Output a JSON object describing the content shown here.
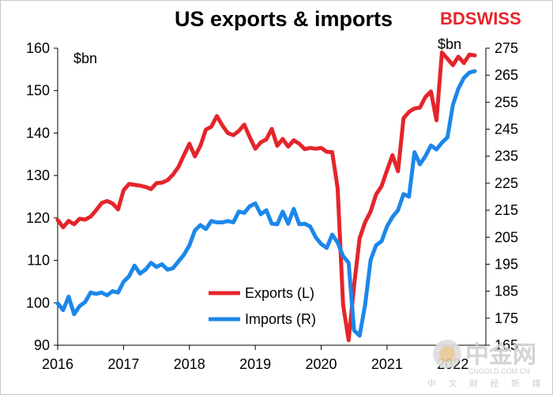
{
  "brand": {
    "name": "BDSWISS",
    "prefix": "BD",
    "suffix": "SWISS",
    "color": "#e4252b"
  },
  "watermark": {
    "big_text": "中金网",
    "small_text": "CNGOLD.COM.CN",
    "cn_text": "中 文 财 经 新 媒 体"
  },
  "colors": {
    "exports": "#e4252b",
    "imports": "#1c87ea",
    "axis": "#000000",
    "tick": "#000000"
  },
  "chart_data": {
    "type": "line",
    "title": "US exports & imports",
    "xlabel": "",
    "ylabel_left": "$bn",
    "ylabel_right": "$bn",
    "x_tick_labels": [
      "2016",
      "2017",
      "2018",
      "2019",
      "2020",
      "2021",
      "2022"
    ],
    "x_range": [
      2016,
      2022.5
    ],
    "left_axis": {
      "range": [
        90,
        160
      ],
      "ticks": [
        90,
        100,
        110,
        120,
        130,
        140,
        150,
        160
      ]
    },
    "right_axis": {
      "range": [
        165,
        275
      ],
      "ticks": [
        165,
        175,
        185,
        195,
        205,
        215,
        225,
        235,
        245,
        255,
        265,
        275
      ]
    },
    "legend": {
      "position": "lower-center",
      "entries": [
        "Exports (L)",
        "Imports (R)"
      ]
    },
    "series": [
      {
        "name": "Exports (L)",
        "axis": "left",
        "x": [
          2016.0,
          2016.083,
          2016.167,
          2016.25,
          2016.333,
          2016.417,
          2016.5,
          2016.583,
          2016.667,
          2016.75,
          2016.833,
          2016.917,
          2017.0,
          2017.083,
          2017.167,
          2017.25,
          2017.333,
          2017.417,
          2017.5,
          2017.583,
          2017.667,
          2017.75,
          2017.833,
          2017.917,
          2018.0,
          2018.083,
          2018.167,
          2018.25,
          2018.333,
          2018.417,
          2018.5,
          2018.583,
          2018.667,
          2018.75,
          2018.833,
          2018.917,
          2019.0,
          2019.083,
          2019.167,
          2019.25,
          2019.333,
          2019.417,
          2019.5,
          2019.583,
          2019.667,
          2019.75,
          2019.833,
          2019.917,
          2020.0,
          2020.083,
          2020.167,
          2020.25,
          2020.333,
          2020.417,
          2020.5,
          2020.583,
          2020.667,
          2020.75,
          2020.833,
          2020.917,
          2021.0,
          2021.083,
          2021.167,
          2021.25,
          2021.333,
          2021.417,
          2021.5,
          2021.583,
          2021.667,
          2021.75,
          2021.833,
          2021.917,
          2022.0,
          2022.083,
          2022.167,
          2022.25,
          2022.333
        ],
        "values": [
          119.5,
          117.8,
          119.3,
          118.5,
          119.8,
          119.6,
          120.3,
          121.8,
          123.5,
          124.0,
          123.4,
          122.0,
          126.5,
          128.0,
          127.8,
          127.6,
          127.3,
          126.8,
          128.2,
          128.3,
          128.9,
          130.2,
          132.0,
          134.8,
          137.5,
          134.5,
          137.0,
          140.8,
          141.5,
          144.0,
          141.8,
          140.0,
          139.5,
          140.5,
          142.0,
          139.0,
          136.3,
          137.8,
          138.5,
          141.0,
          137.0,
          138.6,
          136.8,
          138.3,
          137.5,
          136.2,
          136.5,
          136.3,
          136.5,
          135.6,
          135.5,
          127.0,
          99.5,
          91.2,
          104.0,
          115.2,
          119.0,
          121.5,
          125.5,
          127.5,
          131.2,
          134.8,
          131.0,
          143.5,
          145.0,
          145.8,
          146.0,
          148.5,
          149.8,
          143.0,
          159.0,
          157.5,
          156.0,
          158.0,
          156.5,
          158.5,
          158.3
        ]
      },
      {
        "name": "Imports (R)",
        "axis": "right",
        "x": [
          2016.0,
          2016.083,
          2016.167,
          2016.25,
          2016.333,
          2016.417,
          2016.5,
          2016.583,
          2016.667,
          2016.75,
          2016.833,
          2016.917,
          2017.0,
          2017.083,
          2017.167,
          2017.25,
          2017.333,
          2017.417,
          2017.5,
          2017.583,
          2017.667,
          2017.75,
          2017.833,
          2017.917,
          2018.0,
          2018.083,
          2018.167,
          2018.25,
          2018.333,
          2018.417,
          2018.5,
          2018.583,
          2018.667,
          2018.75,
          2018.833,
          2018.917,
          2019.0,
          2019.083,
          2019.167,
          2019.25,
          2019.333,
          2019.417,
          2019.5,
          2019.583,
          2019.667,
          2019.75,
          2019.833,
          2019.917,
          2020.0,
          2020.083,
          2020.167,
          2020.25,
          2020.333,
          2020.417,
          2020.5,
          2020.583,
          2020.667,
          2020.75,
          2020.833,
          2020.917,
          2021.0,
          2021.083,
          2021.167,
          2021.25,
          2021.333,
          2021.417,
          2021.5,
          2021.583,
          2021.667,
          2021.75,
          2021.833,
          2021.917,
          2022.0,
          2022.083,
          2022.167,
          2022.25,
          2022.333
        ],
        "values": [
          180.5,
          178.0,
          183.0,
          176.5,
          179.5,
          181.0,
          184.5,
          184.0,
          184.5,
          183.5,
          185.0,
          184.5,
          188.5,
          190.5,
          194.5,
          191.5,
          193.0,
          195.5,
          194.0,
          195.0,
          193.0,
          193.5,
          196.0,
          198.5,
          202.0,
          207.5,
          209.5,
          208.0,
          211.0,
          210.5,
          210.5,
          211.0,
          210.5,
          214.5,
          214.0,
          216.5,
          217.5,
          213.5,
          215.0,
          210.0,
          209.8,
          214.5,
          210.0,
          215.5,
          209.8,
          210.0,
          209.0,
          205.0,
          202.5,
          201.0,
          206.0,
          203.0,
          198.0,
          195.5,
          170.5,
          168.5,
          180.0,
          196.5,
          202.0,
          203.5,
          209.0,
          212.5,
          215.0,
          221.0,
          220.0,
          236.5,
          232.0,
          235.0,
          239.0,
          237.5,
          240.0,
          242.0,
          254.0,
          260.0,
          264.0,
          266.0,
          266.5
        ]
      }
    ]
  }
}
